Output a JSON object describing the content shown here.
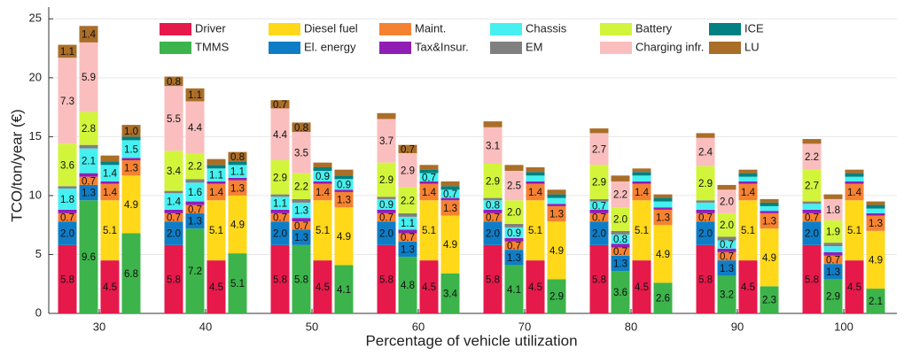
{
  "chart_data": {
    "type": "bar",
    "stacked": true,
    "x_label": "Percentage of vehicle utilization",
    "y_label": "TCO/ton/year (€)",
    "categories": [
      30,
      40,
      50,
      60,
      70,
      80,
      90,
      100
    ],
    "ylim": [
      0,
      26
    ],
    "yticks": [
      0,
      5,
      10,
      15,
      20,
      25
    ],
    "grid": true,
    "series": [
      {
        "name": "Driver",
        "color": "#e6194b",
        "values": [
          [
            5.8,
            null,
            4.5,
            null
          ],
          [
            5.8,
            null,
            4.5,
            null
          ],
          [
            5.8,
            null,
            4.5,
            null
          ],
          [
            5.8,
            null,
            4.5,
            null
          ],
          [
            5.8,
            null,
            4.5,
            null
          ],
          [
            5.8,
            null,
            4.5,
            null
          ],
          [
            5.8,
            null,
            4.5,
            null
          ],
          [
            5.8,
            null,
            4.5,
            null
          ]
        ]
      },
      {
        "name": "TMMS",
        "color": "#3cb44b",
        "values": [
          [
            null,
            9.6,
            null,
            6.8
          ],
          [
            null,
            7.2,
            null,
            5.1
          ],
          [
            null,
            5.8,
            null,
            4.1
          ],
          [
            null,
            4.8,
            null,
            3.4
          ],
          [
            null,
            4.1,
            null,
            2.9
          ],
          [
            null,
            3.6,
            null,
            2.6
          ],
          [
            null,
            3.2,
            null,
            2.3
          ],
          [
            null,
            2.9,
            null,
            2.1
          ]
        ]
      },
      {
        "name": "Diesel fuel",
        "color": "#ffd81a",
        "values": [
          [
            null,
            null,
            5.1,
            4.9
          ],
          [
            null,
            null,
            5.1,
            4.9
          ],
          [
            null,
            null,
            5.1,
            4.9
          ],
          [
            null,
            null,
            5.1,
            4.9
          ],
          [
            null,
            null,
            5.1,
            4.9
          ],
          [
            null,
            null,
            5.1,
            4.9
          ],
          [
            null,
            null,
            5.1,
            4.9
          ],
          [
            null,
            null,
            5.1,
            4.9
          ]
        ]
      },
      {
        "name": "El. energy",
        "color": "#0f7dc6",
        "values": [
          [
            2.0,
            1.3,
            null,
            null
          ],
          [
            2.0,
            1.3,
            null,
            null
          ],
          [
            2.0,
            1.3,
            null,
            null
          ],
          [
            2.0,
            1.3,
            null,
            null
          ],
          [
            2.0,
            1.3,
            null,
            null
          ],
          [
            2.0,
            1.3,
            null,
            null
          ],
          [
            2.0,
            1.3,
            null,
            null
          ],
          [
            2.0,
            1.3,
            null,
            null
          ]
        ],
        "value_labels": [
          [
            "2.0",
            "1.3",
            null,
            null
          ],
          [
            "2.0",
            "1.3",
            null,
            null
          ],
          [
            "2.0",
            "1.3",
            null,
            null
          ],
          [
            "2.0",
            "1.3",
            null,
            null
          ],
          [
            "2.0",
            "1.3",
            null,
            null
          ],
          [
            "2.0",
            "1.3",
            null,
            null
          ],
          [
            "2.0",
            "1.3",
            null,
            null
          ],
          [
            "2.0",
            "1.3",
            null,
            null
          ]
        ]
      },
      {
        "name": "Maint.",
        "color": "#f58231",
        "values": [
          [
            0.7,
            0.7,
            1.4,
            1.3
          ],
          [
            0.7,
            0.7,
            1.4,
            1.3
          ],
          [
            0.7,
            0.7,
            1.4,
            1.3
          ],
          [
            0.7,
            0.7,
            1.4,
            1.3
          ],
          [
            0.7,
            0.7,
            1.4,
            1.3
          ],
          [
            0.7,
            0.7,
            1.4,
            1.3
          ],
          [
            0.7,
            0.7,
            1.4,
            1.3
          ],
          [
            0.7,
            0.7,
            1.4,
            1.3
          ]
        ]
      },
      {
        "name": "Tax&Insur.",
        "color": "#911eb4",
        "values": [
          [
            0.3,
            0.3,
            0.2,
            0.2
          ],
          [
            0.3,
            0.3,
            0.2,
            0.2
          ],
          [
            0.3,
            0.3,
            0.2,
            0.2
          ],
          [
            0.3,
            0.3,
            0.2,
            0.2
          ],
          [
            0.3,
            0.3,
            0.2,
            0.2
          ],
          [
            0.3,
            0.3,
            0.2,
            0.2
          ],
          [
            0.3,
            0.3,
            0.2,
            0.2
          ],
          [
            0.3,
            0.3,
            0.2,
            0.2
          ]
        ]
      },
      {
        "name": "Chassis",
        "color": "#46f0f0",
        "values": [
          [
            1.8,
            2.1,
            1.4,
            1.5
          ],
          [
            1.4,
            1.6,
            1.1,
            1.1
          ],
          [
            1.1,
            1.3,
            0.9,
            0.9
          ],
          [
            0.9,
            1.1,
            0.7,
            0.7
          ],
          [
            0.8,
            0.9,
            0.5,
            0.5
          ],
          [
            0.7,
            0.8,
            0.5,
            0.5
          ],
          [
            0.6,
            0.7,
            0.4,
            0.4
          ],
          [
            0.5,
            0.5,
            0.4,
            0.4
          ]
        ]
      },
      {
        "name": "EM",
        "color": "#808080",
        "values": [
          [
            0.2,
            0.3,
            null,
            null
          ],
          [
            0.2,
            0.3,
            null,
            null
          ],
          [
            0.2,
            0.3,
            null,
            null
          ],
          [
            0.2,
            0.3,
            null,
            null
          ],
          [
            0.2,
            0.3,
            null,
            null
          ],
          [
            0.2,
            0.3,
            null,
            null
          ],
          [
            0.2,
            0.3,
            null,
            null
          ],
          [
            0.2,
            0.3,
            null,
            null
          ]
        ]
      },
      {
        "name": "Battery",
        "color": "#d2f53c",
        "values": [
          [
            3.6,
            2.8,
            null,
            null
          ],
          [
            3.4,
            2.2,
            null,
            null
          ],
          [
            2.9,
            2.2,
            null,
            null
          ],
          [
            2.9,
            2.2,
            null,
            null
          ],
          [
            2.9,
            2.0,
            null,
            null
          ],
          [
            2.9,
            2.0,
            null,
            null
          ],
          [
            2.9,
            2.0,
            null,
            null
          ],
          [
            2.7,
            1.9,
            null,
            null
          ]
        ],
        "value_labels": [
          [
            "3.6",
            "2.8",
            null,
            null
          ],
          [
            "3.4",
            "2.2",
            null,
            null
          ],
          [
            "2.9",
            "2.2",
            null,
            null
          ],
          [
            "2.9",
            "2.2",
            null,
            null
          ],
          [
            "2.9",
            "2.0",
            null,
            null
          ],
          [
            "2.9",
            "2.0",
            null,
            null
          ],
          [
            "2.9",
            "2.0",
            null,
            null
          ],
          [
            "2.7",
            "1.9",
            null,
            null
          ]
        ]
      },
      {
        "name": "Charging infr.",
        "color": "#fabebe",
        "values": [
          [
            7.3,
            5.9,
            null,
            null
          ],
          [
            5.5,
            4.4,
            null,
            null
          ],
          [
            4.4,
            3.5,
            null,
            null
          ],
          [
            3.7,
            2.9,
            null,
            null
          ],
          [
            3.1,
            2.5,
            null,
            null
          ],
          [
            2.7,
            2.2,
            null,
            null
          ],
          [
            2.4,
            2.0,
            null,
            null
          ],
          [
            2.2,
            1.8,
            null,
            null
          ]
        ],
        "value_labels": [
          [
            "7.3",
            "5.9",
            null,
            null
          ],
          [
            "5.5",
            "4.4",
            null,
            null
          ],
          [
            "4.4",
            "3.5",
            null,
            null
          ],
          [
            "3.7",
            "2.9",
            null,
            null
          ],
          [
            "3.1",
            "2.5",
            null,
            null
          ],
          [
            "2.7",
            "2.2",
            null,
            null
          ],
          [
            "2.4",
            "2.0",
            null,
            null
          ],
          [
            "2.2",
            "1.8",
            null,
            null
          ]
        ]
      },
      {
        "name": "ICE",
        "color": "#008080",
        "values": [
          [
            null,
            null,
            0.3,
            0.3
          ],
          [
            null,
            null,
            0.3,
            0.3
          ],
          [
            null,
            null,
            0.3,
            0.3
          ],
          [
            null,
            null,
            0.3,
            0.3
          ],
          [
            null,
            null,
            0.3,
            0.3
          ],
          [
            null,
            null,
            0.3,
            0.3
          ],
          [
            null,
            null,
            0.3,
            0.3
          ],
          [
            null,
            null,
            0.3,
            0.3
          ]
        ]
      },
      {
        "name": "LU",
        "color": "#aa6e28",
        "values": [
          [
            1.1,
            1.4,
            0.5,
            1.0
          ],
          [
            0.8,
            1.1,
            0.5,
            0.8
          ],
          [
            0.7,
            0.8,
            0.4,
            0.5
          ],
          [
            0.5,
            0.7,
            0.4,
            0.4
          ],
          [
            0.5,
            0.5,
            0.4,
            0.4
          ],
          [
            0.4,
            0.5,
            0.3,
            0.3
          ],
          [
            0.4,
            0.4,
            0.3,
            0.3
          ],
          [
            0.4,
            0.4,
            0.3,
            0.3
          ]
        ],
        "value_labels": [
          [
            "1.1",
            "1.4",
            null,
            "1.0"
          ],
          [
            "0.8",
            "1.1",
            null,
            "0.8"
          ],
          [
            "0.7",
            "0.8",
            null,
            null
          ],
          [
            null,
            "0.7",
            null,
            null
          ],
          [
            null,
            null,
            null,
            null
          ],
          [
            null,
            null,
            null,
            null
          ],
          [
            null,
            null,
            null,
            null
          ],
          [
            null,
            null,
            null,
            null
          ]
        ]
      }
    ]
  }
}
